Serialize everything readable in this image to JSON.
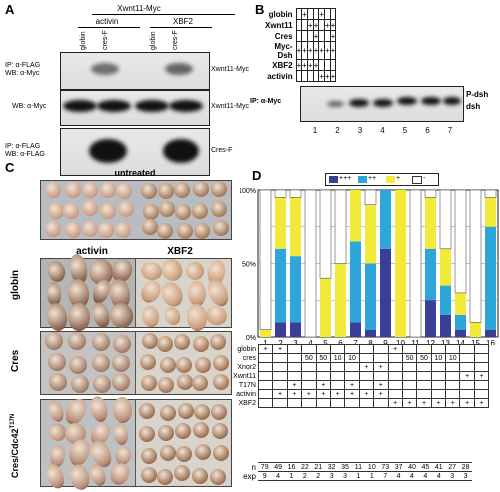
{
  "panelA": {
    "label": "A",
    "header": "Xwnt11-Myc",
    "groups": [
      "activin",
      "XBF2"
    ],
    "lanes": [
      "globin",
      "cres-F",
      "globin",
      "cres-F"
    ],
    "rows": [
      {
        "left1": "IP: α-FLAG",
        "left2": "WB: α-Myc",
        "right": "Xwnt11-Myc"
      },
      {
        "left1": "WB: α-Myc",
        "left2": "",
        "right": "Xwnt11-Myc"
      },
      {
        "left1": "IP: α-FLAG",
        "left2": "WB: α-FLAG",
        "right": "Cres-F"
      }
    ]
  },
  "panelB": {
    "label": "B",
    "rows": [
      {
        "name": "globin",
        "marks": [
          "",
          "+",
          "",
          "",
          "+",
          "",
          ""
        ]
      },
      {
        "name": "Xwnt11",
        "marks": [
          "",
          "",
          "+",
          "+",
          "",
          "+",
          "+"
        ]
      },
      {
        "name": "Cres",
        "marks": [
          "",
          "",
          "",
          "+",
          "",
          "",
          "+"
        ]
      },
      {
        "name": "Myc-Dsh",
        "marks": [
          "+",
          "+",
          "+",
          "+",
          "+",
          "+",
          "+"
        ]
      },
      {
        "name": "XBF2",
        "marks": [
          "+",
          "+",
          "+",
          "+",
          "",
          "",
          ""
        ]
      },
      {
        "name": "activin",
        "marks": [
          "",
          "",
          "",
          "",
          "+",
          "+",
          "+"
        ]
      }
    ],
    "blot_label": "IP: α-Myc",
    "band_labels": [
      "P-dsh",
      "dsh"
    ],
    "lanes": [
      "1",
      "2",
      "3",
      "4",
      "5",
      "6",
      "7"
    ]
  },
  "panelC": {
    "label": "C",
    "top": "untreated",
    "cols": [
      "activin",
      "XBF2"
    ],
    "rows": [
      "globin",
      "Cres",
      "Cres/Cdc42"
    ],
    "sup": "T17N"
  },
  "panelD": {
    "label": "D",
    "legend": [
      "+++",
      "++",
      "+",
      "-"
    ],
    "colors": {
      "strong": "#3a3f95",
      "medium": "#2ea6d9",
      "weak": "#f2ea3a",
      "none": "#ffffff"
    },
    "yticks": [
      "100%",
      "50%",
      "0%"
    ],
    "chart_data": {
      "type": "bar",
      "stacked": true,
      "categories": [
        "1",
        "2",
        "3",
        "4",
        "5",
        "6",
        "7",
        "8",
        "9",
        "10",
        "11",
        "12",
        "13",
        "14",
        "15",
        "16"
      ],
      "ylim": [
        0,
        100
      ],
      "series": [
        {
          "name": "+++",
          "values": [
            0,
            10,
            10,
            0,
            0,
            0,
            10,
            5,
            60,
            0,
            0,
            25,
            15,
            5,
            0,
            5
          ]
        },
        {
          "name": "++",
          "values": [
            0,
            50,
            45,
            0,
            0,
            0,
            55,
            45,
            40,
            0,
            0,
            35,
            20,
            10,
            0,
            70
          ]
        },
        {
          "name": "+",
          "values": [
            5,
            35,
            40,
            0,
            40,
            50,
            35,
            40,
            0,
            100,
            0,
            35,
            25,
            15,
            10,
            20
          ]
        }
      ]
    },
    "table": {
      "rows": [
        {
          "name": "globin",
          "cells": [
            "+",
            "+",
            "",
            "",
            "",
            "",
            "",
            "",
            "",
            "+",
            "",
            "",
            "",
            "",
            "",
            ""
          ]
        },
        {
          "name": "cres",
          "cells": [
            "",
            "",
            "",
            "50",
            "50",
            "10",
            "10",
            "",
            "",
            "",
            "50",
            "50",
            "10",
            "10",
            "",
            ""
          ]
        },
        {
          "name": "Xnor2",
          "cells": [
            "",
            "",
            "",
            "",
            "",
            "",
            "",
            "+",
            "+",
            "",
            "",
            "",
            "",
            "",
            "",
            ""
          ]
        },
        {
          "name": "Xwnt11",
          "cells": [
            "",
            "",
            "",
            "",
            "",
            "",
            "",
            "",
            "",
            "",
            "",
            "",
            "",
            "",
            "+",
            "+"
          ]
        },
        {
          "name": "T17N",
          "cells": [
            "",
            "",
            "+",
            "",
            "+",
            "",
            "+",
            "",
            "+",
            "",
            "",
            "",
            "",
            "",
            "",
            ""
          ]
        },
        {
          "name": "activin",
          "cells": [
            "",
            "+",
            "+",
            "+",
            "+",
            "+",
            "+",
            "+",
            "+",
            "",
            "",
            "",
            "",
            "",
            "",
            ""
          ]
        },
        {
          "name": "XBF2",
          "cells": [
            "",
            "",
            "",
            "",
            "",
            "",
            "",
            "",
            "",
            "+",
            "+",
            "+",
            "+",
            "+",
            "+",
            "+"
          ]
        }
      ],
      "n": [
        "79",
        "49",
        "16",
        "22",
        "21",
        "32",
        "35",
        "11",
        "10",
        "73",
        "37",
        "40",
        "45",
        "41",
        "27",
        "28"
      ],
      "exp": [
        "9",
        "4",
        "1",
        "2",
        "2",
        "3",
        "3",
        "1",
        "1",
        "7",
        "4",
        "4",
        "4",
        "4",
        "3",
        "3"
      ],
      "n_label": "n",
      "exp_label": "exp"
    }
  }
}
